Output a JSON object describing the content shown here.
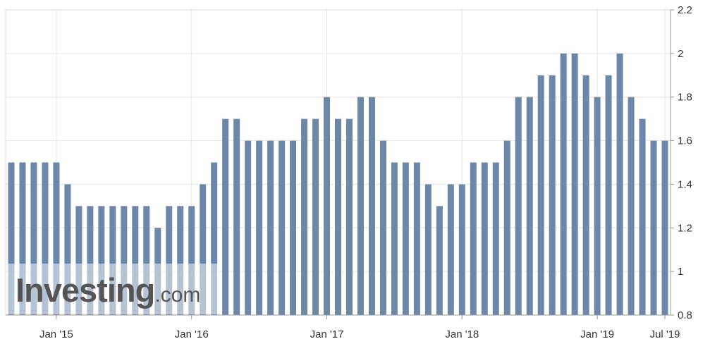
{
  "chart_data": {
    "type": "bar",
    "title": "",
    "xlabel": "",
    "ylabel": "",
    "ylim": [
      0.8,
      2.2
    ],
    "yticks": [
      "2.2",
      "2",
      "1.8",
      "1.6",
      "1.4",
      "1.2",
      "1",
      "0.8"
    ],
    "y_axis_position": "right",
    "grid": true,
    "x_tick_labels": [
      {
        "label": "Jan '15",
        "index": 4
      },
      {
        "label": "Jan '16",
        "index": 16
      },
      {
        "label": "Jan '17",
        "index": 28
      },
      {
        "label": "Jan '18",
        "index": 40
      },
      {
        "label": "Jan '19",
        "index": 52
      },
      {
        "label": "Jul '19",
        "index": 58
      }
    ],
    "categories": [
      "2014-09",
      "2014-10",
      "2014-11",
      "2014-12",
      "2015-01",
      "2015-02",
      "2015-03",
      "2015-04",
      "2015-05",
      "2015-06",
      "2015-07",
      "2015-08",
      "2015-09",
      "2015-10",
      "2015-11",
      "2015-12",
      "2016-01",
      "2016-02",
      "2016-03",
      "2016-04",
      "2016-05",
      "2016-06",
      "2016-07",
      "2016-08",
      "2016-09",
      "2016-10",
      "2016-11",
      "2016-12",
      "2017-01",
      "2017-02",
      "2017-03",
      "2017-04",
      "2017-05",
      "2017-06",
      "2017-07",
      "2017-08",
      "2017-09",
      "2017-10",
      "2017-11",
      "2017-12",
      "2018-01",
      "2018-02",
      "2018-03",
      "2018-04",
      "2018-05",
      "2018-06",
      "2018-07",
      "2018-08",
      "2018-09",
      "2018-10",
      "2018-11",
      "2018-12",
      "2019-01",
      "2019-02",
      "2019-03",
      "2019-04",
      "2019-05",
      "2019-06",
      "2019-07"
    ],
    "values": [
      1.5,
      1.5,
      1.5,
      1.5,
      1.5,
      1.4,
      1.3,
      1.3,
      1.3,
      1.3,
      1.3,
      1.3,
      1.3,
      1.2,
      1.3,
      1.3,
      1.3,
      1.4,
      1.5,
      1.7,
      1.7,
      1.6,
      1.6,
      1.6,
      1.6,
      1.6,
      1.7,
      1.7,
      1.8,
      1.7,
      1.7,
      1.8,
      1.8,
      1.6,
      1.5,
      1.5,
      1.5,
      1.4,
      1.3,
      1.4,
      1.4,
      1.5,
      1.5,
      1.5,
      1.6,
      1.8,
      1.8,
      1.9,
      1.9,
      2.0,
      2.0,
      1.9,
      1.8,
      1.9,
      2.0,
      1.8,
      1.7,
      1.6,
      1.6
    ],
    "bar_color": "#6b88ab",
    "grid_color": "#e6e6e6"
  },
  "watermark": {
    "brand": "Investing",
    "suffix": ".com"
  }
}
